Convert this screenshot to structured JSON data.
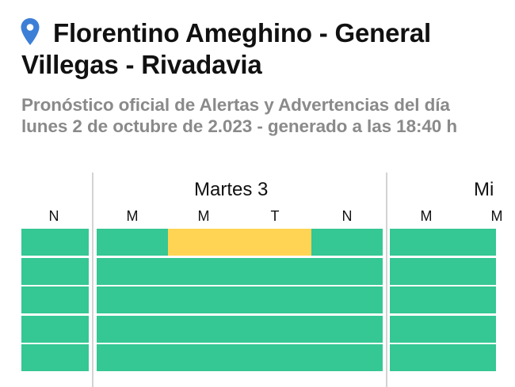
{
  "location": {
    "icon": "map-pin-icon",
    "line1": "Florentino Ameghino - General",
    "line2": "Villegas - Rivadavia"
  },
  "subtitle": {
    "line1": "Pronóstico oficial de Alertas y Advertencias del día",
    "line2": "lunes 2 de octubre de 2.023 - generado a las 18:40 h"
  },
  "colors": {
    "pin": "#3d7fd6",
    "green": "#35c794",
    "yellow": "#ffd454",
    "divider": "#d3d3d3"
  },
  "days": [
    {
      "name": "",
      "periods": [
        "N"
      ]
    },
    {
      "name": "Martes 3",
      "periods": [
        "M",
        "M",
        "T",
        "N"
      ]
    },
    {
      "name": "Mi",
      "periods": [
        "M",
        "M"
      ]
    }
  ],
  "alert_rows": [
    [
      "green",
      "green",
      "yellow",
      "yellow",
      "green",
      "green",
      "green"
    ],
    [
      "green",
      "green",
      "green",
      "green",
      "green",
      "green",
      "green"
    ],
    [
      "green",
      "green",
      "green",
      "green",
      "green",
      "green",
      "green"
    ],
    [
      "green",
      "green",
      "green",
      "green",
      "green",
      "green",
      "green"
    ],
    [
      "green",
      "green",
      "green",
      "green",
      "green",
      "green",
      "green"
    ]
  ]
}
